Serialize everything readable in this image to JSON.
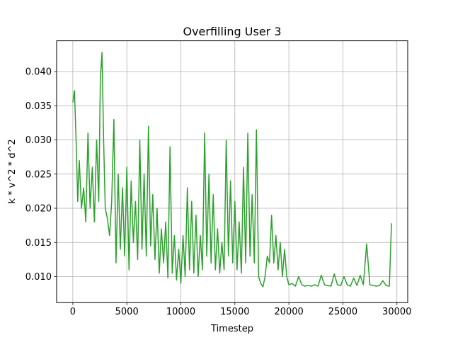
{
  "chart_data": {
    "type": "line",
    "title": "Overfilling User 3",
    "xlabel": "Timestep",
    "ylabel": "k * v^2 * d^2",
    "xlim": [
      -1500,
      31000
    ],
    "ylim": [
      0.0062,
      0.0445
    ],
    "xticks": [
      0,
      5000,
      10000,
      15000,
      20000,
      25000,
      30000
    ],
    "yticks": [
      0.01,
      0.015,
      0.02,
      0.025,
      0.03,
      0.035,
      0.04
    ],
    "xtick_labels": [
      "0",
      "5000",
      "10000",
      "15000",
      "20000",
      "25000",
      "30000"
    ],
    "ytick_labels": [
      "0.010",
      "0.015",
      "0.020",
      "0.025",
      "0.030",
      "0.035",
      "0.040"
    ],
    "grid": true,
    "series": [
      {
        "color": "#2ca02c",
        "x": [
          0,
          150,
          300,
          450,
          600,
          800,
          1000,
          1200,
          1400,
          1600,
          1800,
          2000,
          2200,
          2400,
          2550,
          2700,
          2850,
          3000,
          3200,
          3400,
          3600,
          3800,
          4000,
          4200,
          4400,
          4600,
          4800,
          5000,
          5200,
          5400,
          5600,
          5800,
          6000,
          6200,
          6400,
          6600,
          6800,
          7000,
          7200,
          7400,
          7600,
          7800,
          8000,
          8200,
          8400,
          8600,
          8800,
          9000,
          9200,
          9400,
          9600,
          9800,
          10000,
          10200,
          10400,
          10600,
          10800,
          11000,
          11200,
          11400,
          11600,
          11800,
          12000,
          12200,
          12400,
          12600,
          12800,
          13000,
          13200,
          13400,
          13600,
          13800,
          14000,
          14200,
          14400,
          14600,
          14800,
          15000,
          15200,
          15400,
          15600,
          15800,
          16000,
          16200,
          16400,
          16600,
          16800,
          17000,
          17200,
          17400,
          17600,
          17800,
          18000,
          18200,
          18400,
          18600,
          18800,
          19000,
          19200,
          19400,
          19600,
          19800,
          20000,
          20300,
          20600,
          20900,
          21200,
          21500,
          21800,
          22100,
          22400,
          22700,
          23000,
          23300,
          23600,
          23900,
          24200,
          24500,
          24800,
          25100,
          25400,
          25700,
          26000,
          26300,
          26600,
          26900,
          27200,
          27500,
          27800,
          28100,
          28400,
          28700,
          29000,
          29300,
          29500
        ],
        "y": [
          0.0355,
          0.0372,
          0.03,
          0.021,
          0.027,
          0.02,
          0.023,
          0.018,
          0.031,
          0.02,
          0.026,
          0.018,
          0.03,
          0.021,
          0.039,
          0.0428,
          0.03,
          0.02,
          0.0185,
          0.016,
          0.021,
          0.033,
          0.012,
          0.025,
          0.014,
          0.023,
          0.013,
          0.026,
          0.011,
          0.024,
          0.015,
          0.021,
          0.0125,
          0.03,
          0.014,
          0.025,
          0.013,
          0.032,
          0.0145,
          0.022,
          0.0125,
          0.02,
          0.0105,
          0.017,
          0.012,
          0.018,
          0.0098,
          0.029,
          0.0105,
          0.016,
          0.0095,
          0.014,
          0.009,
          0.016,
          0.01,
          0.023,
          0.011,
          0.021,
          0.0105,
          0.019,
          0.01,
          0.016,
          0.011,
          0.031,
          0.013,
          0.025,
          0.012,
          0.022,
          0.011,
          0.017,
          0.0105,
          0.015,
          0.011,
          0.03,
          0.013,
          0.024,
          0.012,
          0.021,
          0.011,
          0.018,
          0.0105,
          0.026,
          0.012,
          0.031,
          0.013,
          0.022,
          0.012,
          0.0315,
          0.01,
          0.009,
          0.0085,
          0.01,
          0.013,
          0.012,
          0.019,
          0.012,
          0.016,
          0.011,
          0.015,
          0.01,
          0.014,
          0.01,
          0.0088,
          0.009,
          0.0086,
          0.01,
          0.0088,
          0.0086,
          0.0087,
          0.0086,
          0.0088,
          0.0086,
          0.0102,
          0.0088,
          0.0087,
          0.0086,
          0.0104,
          0.0088,
          0.0087,
          0.01,
          0.0088,
          0.0086,
          0.0098,
          0.0087,
          0.0102,
          0.0088,
          0.0148,
          0.0088,
          0.0087,
          0.0086,
          0.0087,
          0.0094,
          0.0087,
          0.0086,
          0.0178
        ]
      }
    ]
  }
}
